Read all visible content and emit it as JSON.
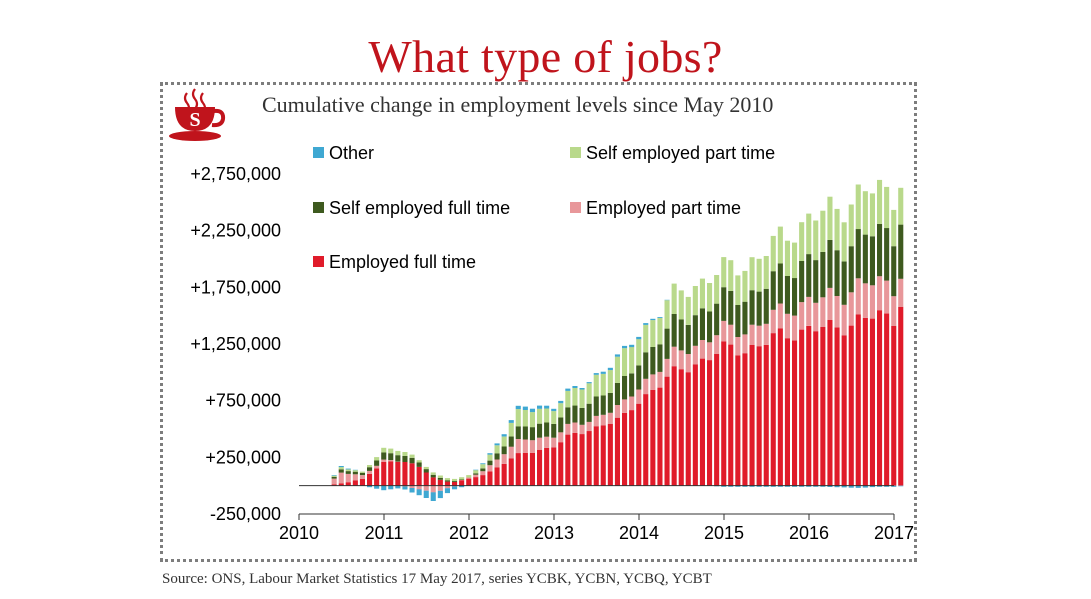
{
  "title": "What type of jobs?",
  "subtitle": "Cumulative change in employment levels since May 2010",
  "source": "Source: ONS, Labour Market Statistics 17 May 2017, series YCBK, YCBN, YCBQ, YCBT",
  "logo_icon": "steaming-coffee-cup-icon",
  "logo_letter": "S",
  "colors": {
    "title": "#c0141c",
    "employed_full_time": "#e01b2a",
    "employed_part_time": "#e8979a",
    "self_full_time": "#3e5a1f",
    "self_part_time": "#b9d98b",
    "other": "#3fa8d2"
  },
  "chart_data": {
    "type": "bar",
    "stacked": true,
    "x_ticks": [
      "2010",
      "2011",
      "2012",
      "2013",
      "2014",
      "2015",
      "2016",
      "2017"
    ],
    "y_ticks": [
      "+2,750,000",
      "+2,250,000",
      "+1,750,000",
      "+1,250,000",
      "+750,000",
      "+250,000",
      "-250,000"
    ],
    "y_tick_values": [
      2750000,
      2250000,
      1750000,
      1250000,
      750000,
      250000,
      -250000
    ],
    "ylim": [
      -250000,
      2750000
    ],
    "xlim": [
      2010,
      2017
    ],
    "grid": false,
    "legend_position": "top-left",
    "legend": [
      "Other",
      "Self employed part time",
      "Self employed full time",
      "Employed part time",
      "Employed full time"
    ],
    "series": [
      {
        "name": "Employed full time",
        "key": "eft",
        "points": [
          [
            2010.33,
            0
          ],
          [
            2010.5,
            20000
          ],
          [
            2010.75,
            60000
          ],
          [
            2011.0,
            200000
          ],
          [
            2011.2,
            230000
          ],
          [
            2011.4,
            170000
          ],
          [
            2011.6,
            60000
          ],
          [
            2011.8,
            30000
          ],
          [
            2012.0,
            60000
          ],
          [
            2012.2,
            100000
          ],
          [
            2012.4,
            200000
          ],
          [
            2012.6,
            280000
          ],
          [
            2012.8,
            300000
          ],
          [
            2013.0,
            360000
          ],
          [
            2013.2,
            440000
          ],
          [
            2013.4,
            480000
          ],
          [
            2013.6,
            560000
          ],
          [
            2013.8,
            580000
          ],
          [
            2014.0,
            750000
          ],
          [
            2014.2,
            880000
          ],
          [
            2014.4,
            980000
          ],
          [
            2014.6,
            1060000
          ],
          [
            2014.8,
            1130000
          ],
          [
            2015.0,
            1200000
          ],
          [
            2015.2,
            1210000
          ],
          [
            2015.4,
            1230000
          ],
          [
            2015.6,
            1300000
          ],
          [
            2015.8,
            1360000
          ],
          [
            2016.0,
            1380000
          ],
          [
            2016.2,
            1380000
          ],
          [
            2016.4,
            1420000
          ],
          [
            2016.6,
            1460000
          ],
          [
            2016.8,
            1490000
          ],
          [
            2017.0,
            1500000
          ],
          [
            2017.05,
            1650000
          ]
        ]
      },
      {
        "name": "Employed part time",
        "key": "ept",
        "points": [
          [
            2010.33,
            0
          ],
          [
            2010.5,
            100000
          ],
          [
            2010.75,
            30000
          ],
          [
            2011.0,
            20000
          ],
          [
            2011.2,
            0
          ],
          [
            2011.4,
            -30000
          ],
          [
            2011.6,
            -60000
          ],
          [
            2011.8,
            -10000
          ],
          [
            2012.0,
            10000
          ],
          [
            2012.2,
            40000
          ],
          [
            2012.4,
            90000
          ],
          [
            2012.6,
            120000
          ],
          [
            2012.8,
            110000
          ],
          [
            2013.0,
            90000
          ],
          [
            2013.2,
            90000
          ],
          [
            2013.4,
            80000
          ],
          [
            2013.6,
            100000
          ],
          [
            2013.8,
            110000
          ],
          [
            2014.0,
            130000
          ],
          [
            2014.2,
            140000
          ],
          [
            2014.4,
            160000
          ],
          [
            2014.6,
            170000
          ],
          [
            2014.8,
            160000
          ],
          [
            2015.0,
            170000
          ],
          [
            2015.2,
            170000
          ],
          [
            2015.4,
            180000
          ],
          [
            2015.6,
            200000
          ],
          [
            2015.8,
            230000
          ],
          [
            2016.0,
            250000
          ],
          [
            2016.2,
            260000
          ],
          [
            2016.4,
            290000
          ],
          [
            2016.6,
            310000
          ],
          [
            2016.8,
            290000
          ],
          [
            2017.0,
            280000
          ],
          [
            2017.05,
            260000
          ]
        ]
      },
      {
        "name": "Self employed full time",
        "key": "sft",
        "points": [
          [
            2010.33,
            0
          ],
          [
            2010.5,
            30000
          ],
          [
            2010.75,
            20000
          ],
          [
            2011.0,
            60000
          ],
          [
            2011.2,
            60000
          ],
          [
            2011.4,
            40000
          ],
          [
            2011.6,
            20000
          ],
          [
            2011.8,
            10000
          ],
          [
            2012.0,
            0
          ],
          [
            2012.2,
            30000
          ],
          [
            2012.4,
            70000
          ],
          [
            2012.6,
            110000
          ],
          [
            2012.8,
            120000
          ],
          [
            2013.0,
            130000
          ],
          [
            2013.2,
            140000
          ],
          [
            2013.4,
            160000
          ],
          [
            2013.6,
            180000
          ],
          [
            2013.8,
            190000
          ],
          [
            2014.0,
            220000
          ],
          [
            2014.2,
            250000
          ],
          [
            2014.4,
            270000
          ],
          [
            2014.6,
            270000
          ],
          [
            2014.8,
            280000
          ],
          [
            2015.0,
            280000
          ],
          [
            2015.2,
            300000
          ],
          [
            2015.4,
            300000
          ],
          [
            2015.6,
            330000
          ],
          [
            2015.8,
            350000
          ],
          [
            2016.0,
            370000
          ],
          [
            2016.2,
            400000
          ],
          [
            2016.4,
            410000
          ],
          [
            2016.6,
            420000
          ],
          [
            2016.8,
            440000
          ],
          [
            2017.0,
            470000
          ],
          [
            2017.05,
            500000
          ]
        ]
      },
      {
        "name": "Self employed part time",
        "key": "spt",
        "points": [
          [
            2010.33,
            0
          ],
          [
            2010.5,
            20000
          ],
          [
            2010.75,
            10000
          ],
          [
            2011.0,
            40000
          ],
          [
            2011.2,
            40000
          ],
          [
            2011.4,
            20000
          ],
          [
            2011.6,
            20000
          ],
          [
            2011.8,
            20000
          ],
          [
            2012.0,
            20000
          ],
          [
            2012.2,
            40000
          ],
          [
            2012.4,
            90000
          ],
          [
            2012.6,
            150000
          ],
          [
            2012.8,
            130000
          ],
          [
            2013.0,
            120000
          ],
          [
            2013.2,
            140000
          ],
          [
            2013.4,
            180000
          ],
          [
            2013.6,
            200000
          ],
          [
            2013.8,
            230000
          ],
          [
            2014.0,
            240000
          ],
          [
            2014.2,
            240000
          ],
          [
            2014.4,
            250000
          ],
          [
            2014.6,
            260000
          ],
          [
            2014.8,
            260000
          ],
          [
            2015.0,
            250000
          ],
          [
            2015.2,
            280000
          ],
          [
            2015.4,
            290000
          ],
          [
            2015.6,
            300000
          ],
          [
            2015.8,
            330000
          ],
          [
            2016.0,
            350000
          ],
          [
            2016.2,
            360000
          ],
          [
            2016.4,
            370000
          ],
          [
            2016.6,
            380000
          ],
          [
            2016.8,
            380000
          ],
          [
            2017.0,
            340000
          ],
          [
            2017.05,
            340000
          ]
        ]
      },
      {
        "name": "Other",
        "key": "oth",
        "points": [
          [
            2010.33,
            0
          ],
          [
            2010.5,
            10000
          ],
          [
            2010.75,
            0
          ],
          [
            2011.0,
            -40000
          ],
          [
            2011.2,
            -20000
          ],
          [
            2011.4,
            -50000
          ],
          [
            2011.6,
            -80000
          ],
          [
            2011.8,
            -30000
          ],
          [
            2012.0,
            0
          ],
          [
            2012.2,
            10000
          ],
          [
            2012.4,
            20000
          ],
          [
            2012.6,
            30000
          ],
          [
            2012.8,
            30000
          ],
          [
            2013.0,
            20000
          ],
          [
            2013.2,
            20000
          ],
          [
            2013.4,
            10000
          ],
          [
            2013.6,
            20000
          ],
          [
            2013.8,
            20000
          ],
          [
            2014.0,
            20000
          ],
          [
            2014.2,
            10000
          ],
          [
            2014.4,
            0
          ],
          [
            2014.6,
            0
          ],
          [
            2014.8,
            0
          ],
          [
            2015.0,
            -10000
          ],
          [
            2015.2,
            -10000
          ],
          [
            2015.4,
            -10000
          ],
          [
            2015.6,
            -10000
          ],
          [
            2015.8,
            -10000
          ],
          [
            2016.0,
            -10000
          ],
          [
            2016.2,
            -10000
          ],
          [
            2016.4,
            -15000
          ],
          [
            2016.6,
            -20000
          ],
          [
            2016.8,
            -10000
          ],
          [
            2017.0,
            -10000
          ],
          [
            2017.05,
            -5000
          ]
        ]
      }
    ]
  }
}
